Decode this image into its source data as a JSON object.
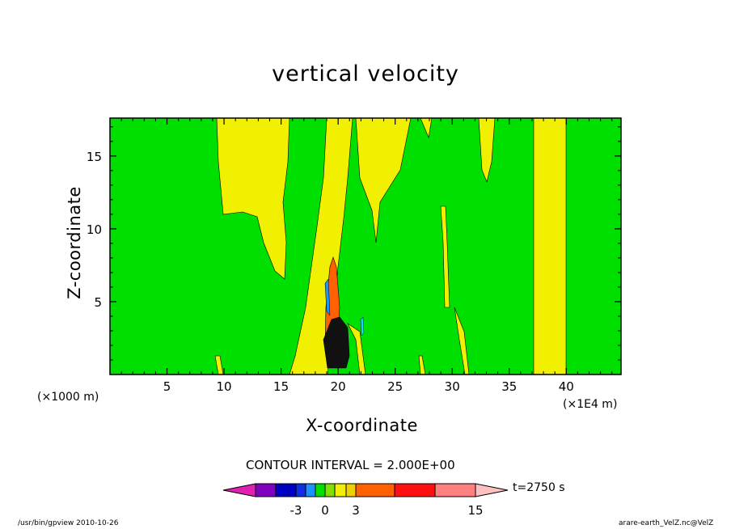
{
  "chart_data": {
    "type": "heatmap",
    "title": "vertical velocity",
    "xlabel": "X-coordinate",
    "ylabel": "Z-coordinate",
    "x_unit_left": "(×1000 m)",
    "x_unit_right": "(×1E4 m)",
    "xlim": [
      0,
      44.8
    ],
    "ylim": [
      0,
      17.6
    ],
    "x_ticks": [
      5,
      10,
      15,
      20,
      25,
      30,
      35,
      40
    ],
    "y_ticks": [
      5,
      10,
      15
    ],
    "contour_interval": "CONTOUR INTERVAL = 2.000E+00",
    "time_label": "t=2750 s",
    "colorbar": {
      "tick_labels": [
        "-3",
        "0",
        "3",
        "15"
      ],
      "colors": [
        "#e020b0",
        "#8000c0",
        "#0000c0",
        "#1030e0",
        "#1e90ff",
        "#00e0ff",
        "#00e000",
        "#80e000",
        "#f0f000",
        "#f0d000",
        "#ffa000",
        "#ff6000",
        "#ff1010",
        "#ff8080",
        "#ffc0c0"
      ]
    },
    "background_color": "#00e000",
    "updraft_color": "#f0f000",
    "strong_updraft_color": "#ff6000"
  },
  "footer": {
    "left": "/usr/bin/gpview   2010-10-26",
    "right": "arare-earth_VelZ.nc@VelZ"
  }
}
